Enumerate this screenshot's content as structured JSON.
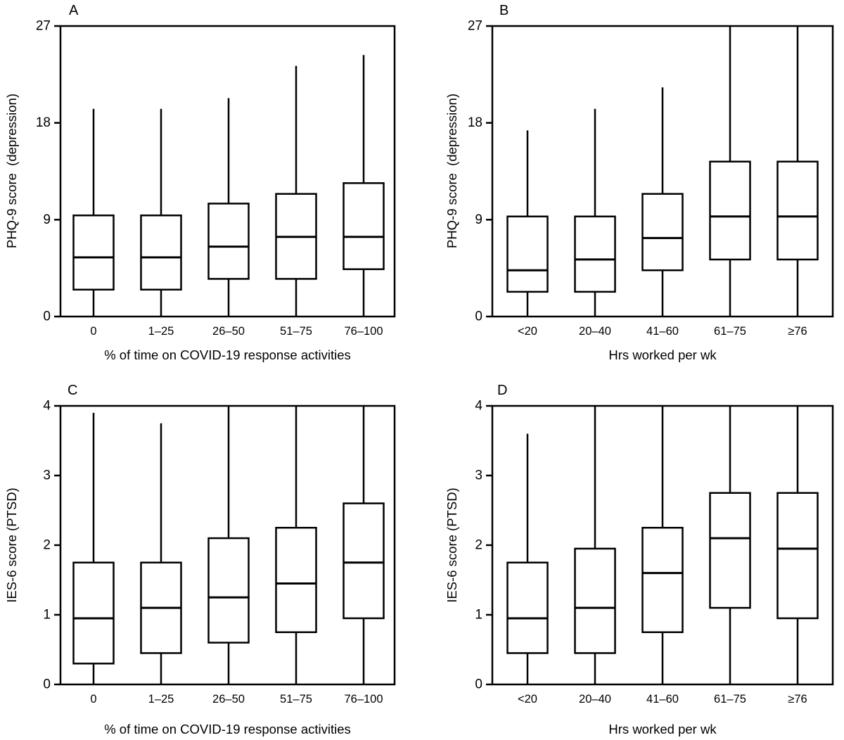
{
  "figure": {
    "background": "#ffffff",
    "line_color": "#000000",
    "text_color": "#000000",
    "panel_letters": [
      "A",
      "B",
      "C",
      "D"
    ]
  },
  "chart_data": [
    {
      "type": "box",
      "panel": "A",
      "xlabel": "% of time on COVID-19 response activities",
      "ylabel": "PHQ-9 score  (depression)",
      "ylim": [
        0,
        27
      ],
      "yticks": [
        0,
        9,
        18,
        27
      ],
      "grid": false,
      "legend": "none",
      "categories": [
        "0",
        "1–25",
        "26–50",
        "51–75",
        "76–100"
      ],
      "boxes": [
        {
          "category": "0",
          "min": 0,
          "q1": 2.5,
          "median": 5.5,
          "q3": 9.4,
          "max": 19.3
        },
        {
          "category": "1–25",
          "min": 0,
          "q1": 2.5,
          "median": 5.5,
          "q3": 9.4,
          "max": 19.3
        },
        {
          "category": "26–50",
          "min": 0,
          "q1": 3.5,
          "median": 6.5,
          "q3": 10.5,
          "max": 20.3
        },
        {
          "category": "51–75",
          "min": 0,
          "q1": 3.5,
          "median": 7.4,
          "q3": 11.4,
          "max": 23.3
        },
        {
          "category": "76–100",
          "min": 0,
          "q1": 4.4,
          "median": 7.4,
          "q3": 12.4,
          "max": 24.3
        }
      ]
    },
    {
      "type": "box",
      "panel": "B",
      "xlabel": "Hrs worked per wk",
      "ylabel": "PHQ-9 score  (depression)",
      "ylim": [
        0,
        27
      ],
      "yticks": [
        0,
        9,
        18,
        27
      ],
      "grid": false,
      "legend": "none",
      "categories": [
        "<20",
        "20–40",
        "41–60",
        "61–75",
        "≥76"
      ],
      "boxes": [
        {
          "category": "<20",
          "min": 0,
          "q1": 2.3,
          "median": 4.3,
          "q3": 9.3,
          "max": 17.3
        },
        {
          "category": "20–40",
          "min": 0,
          "q1": 2.3,
          "median": 5.3,
          "q3": 9.3,
          "max": 19.3
        },
        {
          "category": "41–60",
          "min": 0,
          "q1": 4.3,
          "median": 7.3,
          "q3": 11.4,
          "max": 21.3
        },
        {
          "category": "61–75",
          "min": 0,
          "q1": 5.3,
          "median": 9.3,
          "q3": 14.4,
          "max": 27
        },
        {
          "category": "≥76",
          "min": 0,
          "q1": 5.3,
          "median": 9.3,
          "q3": 14.4,
          "max": 27
        }
      ]
    },
    {
      "type": "box",
      "panel": "C",
      "xlabel": "% of time on COVID-19 response activities",
      "ylabel": "IES-6 score (PTSD)",
      "ylim": [
        0,
        4
      ],
      "yticks": [
        0,
        1,
        2,
        3,
        4
      ],
      "grid": false,
      "legend": "none",
      "categories": [
        "0",
        "1–25",
        "26–50",
        "51–75",
        "76–100"
      ],
      "boxes": [
        {
          "category": "0",
          "min": 0,
          "q1": 0.3,
          "median": 0.95,
          "q3": 1.75,
          "max": 3.9
        },
        {
          "category": "1–25",
          "min": 0,
          "q1": 0.45,
          "median": 1.1,
          "q3": 1.75,
          "max": 3.75
        },
        {
          "category": "26–50",
          "min": 0,
          "q1": 0.6,
          "median": 1.25,
          "q3": 2.1,
          "max": 4
        },
        {
          "category": "51–75",
          "min": 0,
          "q1": 0.75,
          "median": 1.45,
          "q3": 2.25,
          "max": 4
        },
        {
          "category": "76–100",
          "min": 0,
          "q1": 0.95,
          "median": 1.75,
          "q3": 2.6,
          "max": 4
        }
      ]
    },
    {
      "type": "box",
      "panel": "D",
      "xlabel": "Hrs worked per wk",
      "ylabel": "IES-6 score (PTSD)",
      "ylim": [
        0,
        4
      ],
      "yticks": [
        0,
        1,
        2,
        3,
        4
      ],
      "grid": false,
      "legend": "none",
      "categories": [
        "<20",
        "20–40",
        "41–60",
        "61–75",
        "≥76"
      ],
      "boxes": [
        {
          "category": "<20",
          "min": 0,
          "q1": 0.45,
          "median": 0.95,
          "q3": 1.75,
          "max": 3.6
        },
        {
          "category": "20–40",
          "min": 0,
          "q1": 0.45,
          "median": 1.1,
          "q3": 1.95,
          "max": 4
        },
        {
          "category": "41–60",
          "min": 0,
          "q1": 0.75,
          "median": 1.6,
          "q3": 2.25,
          "max": 4
        },
        {
          "category": "61–75",
          "min": 0,
          "q1": 1.1,
          "median": 2.1,
          "q3": 2.75,
          "max": 4
        },
        {
          "category": "≥76",
          "min": 0,
          "q1": 0.95,
          "median": 1.95,
          "q3": 2.75,
          "max": 4
        }
      ]
    }
  ]
}
